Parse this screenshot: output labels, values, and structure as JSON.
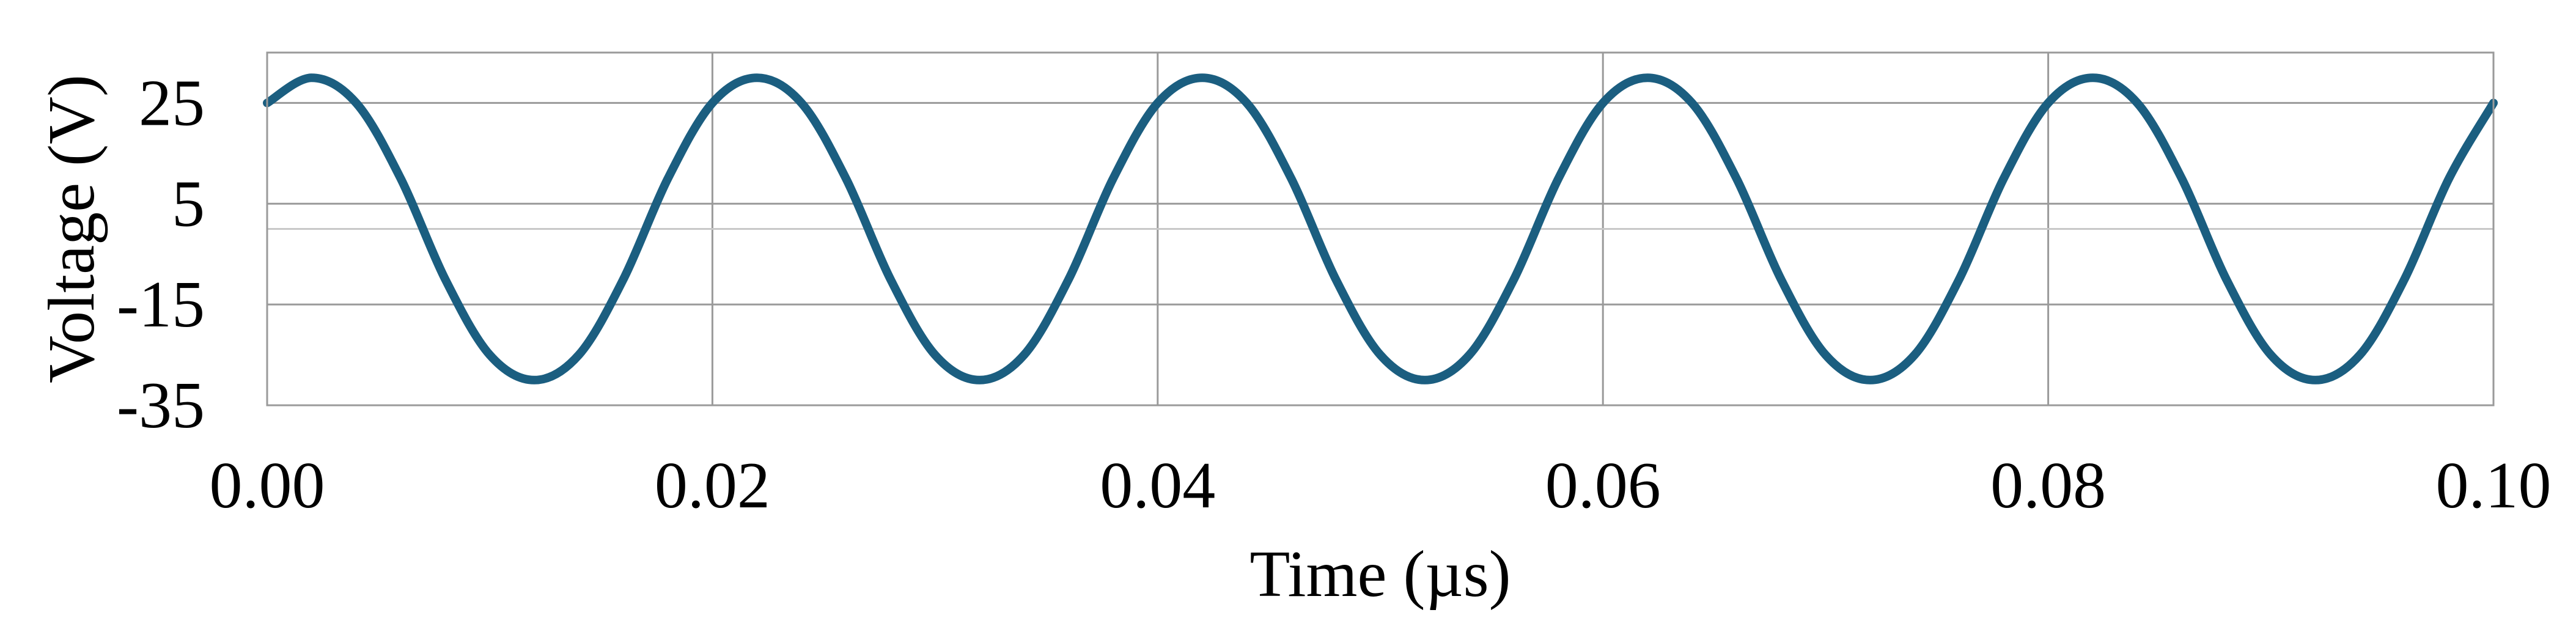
{
  "chart_data": {
    "type": "line",
    "title": "",
    "xlabel": "Time (µs)",
    "ylabel": "Voltage (V)",
    "xlim": [
      0.0,
      0.1
    ],
    "ylim": [
      -35,
      35
    ],
    "x_ticks": [
      0.0,
      0.02,
      0.04,
      0.06,
      0.08,
      0.1
    ],
    "x_tick_labels": [
      "0.00",
      "0.02",
      "0.04",
      "0.06",
      "0.08",
      "0.10"
    ],
    "y_ticks": [
      -35,
      -15,
      5,
      25
    ],
    "y_tick_labels": [
      "-35",
      "-15",
      "5",
      "25"
    ],
    "grid": true,
    "legend": "none",
    "reference_line_y": 0,
    "series": [
      {
        "color": "#1b5e80",
        "x": [
          0.0,
          0.002,
          0.004,
          0.006,
          0.008,
          0.01,
          0.012,
          0.014,
          0.016,
          0.018,
          0.02,
          0.022,
          0.024,
          0.026,
          0.028,
          0.03,
          0.032,
          0.034,
          0.036,
          0.038,
          0.04,
          0.042,
          0.044,
          0.046,
          0.048,
          0.05,
          0.052,
          0.054,
          0.056,
          0.058,
          0.06,
          0.062,
          0.064,
          0.066,
          0.068,
          0.07,
          0.072,
          0.074,
          0.076,
          0.078,
          0.08,
          0.082,
          0.084,
          0.086,
          0.088,
          0.09,
          0.092,
          0.094,
          0.096,
          0.098,
          0.1
        ],
        "y": [
          25,
          30,
          25,
          10,
          -10,
          -25,
          -30,
          -25,
          -10,
          10,
          25,
          30,
          25,
          10,
          -10,
          -25,
          -30,
          -25,
          -10,
          10,
          25,
          30,
          25,
          10,
          -10,
          -25,
          -30,
          -25,
          -10,
          10,
          25,
          30,
          25,
          10,
          -10,
          -25,
          -30,
          -25,
          -10,
          10,
          25,
          30,
          25,
          10,
          -10,
          -25,
          -30,
          -25,
          -10,
          10,
          25
        ]
      }
    ]
  }
}
